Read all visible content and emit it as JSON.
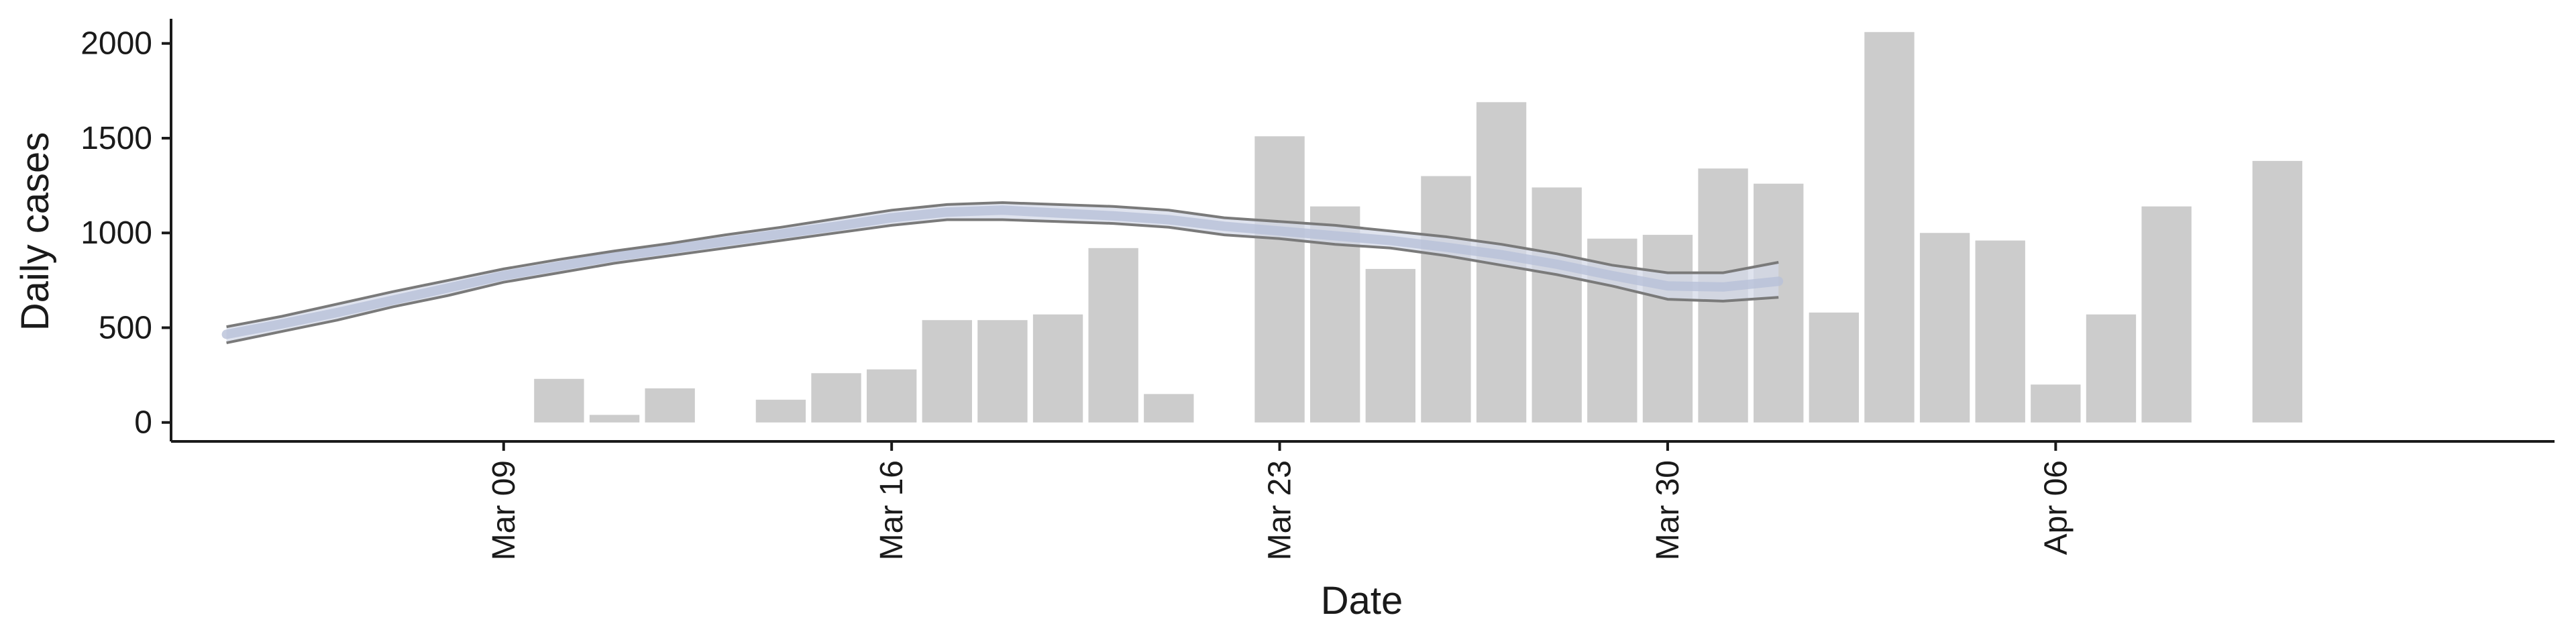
{
  "chart_data": {
    "type": "bar",
    "xlabel": "Date",
    "ylabel": "Daily cases",
    "ylim": [
      -100,
      2130
    ],
    "y_ticks": [
      0,
      500,
      1000,
      1500,
      2000
    ],
    "x_ticks": [
      {
        "date": "2020-03-09",
        "label": "Mar 09"
      },
      {
        "date": "2020-03-16",
        "label": "Mar 16"
      },
      {
        "date": "2020-03-23",
        "label": "Mar 23"
      },
      {
        "date": "2020-03-30",
        "label": "Mar 30"
      },
      {
        "date": "2020-04-06",
        "label": "Apr 06"
      }
    ],
    "xlim": [
      "2020-03-03",
      "2020-04-15"
    ],
    "grid": false,
    "legend": "none",
    "colors": {
      "bars": "#cccccc",
      "ribbon": "#d4d9e8",
      "median": "#b8c0d8",
      "bounds": "#7a7a7a",
      "axis": "#1a1a1a"
    },
    "bars": [
      {
        "date": "2020-03-10",
        "value": 230
      },
      {
        "date": "2020-03-11",
        "value": 40
      },
      {
        "date": "2020-03-12",
        "value": 180
      },
      {
        "date": "2020-03-14",
        "value": 120
      },
      {
        "date": "2020-03-15",
        "value": 260
      },
      {
        "date": "2020-03-16",
        "value": 280
      },
      {
        "date": "2020-03-17",
        "value": 540
      },
      {
        "date": "2020-03-18",
        "value": 540
      },
      {
        "date": "2020-03-19",
        "value": 570
      },
      {
        "date": "2020-03-20",
        "value": 920
      },
      {
        "date": "2020-03-21",
        "value": 150
      },
      {
        "date": "2020-03-23",
        "value": 1510
      },
      {
        "date": "2020-03-24",
        "value": 1140
      },
      {
        "date": "2020-03-25",
        "value": 810
      },
      {
        "date": "2020-03-26",
        "value": 1300
      },
      {
        "date": "2020-03-27",
        "value": 1690
      },
      {
        "date": "2020-03-28",
        "value": 1240
      },
      {
        "date": "2020-03-29",
        "value": 970
      },
      {
        "date": "2020-03-30",
        "value": 990
      },
      {
        "date": "2020-03-31",
        "value": 1340
      },
      {
        "date": "2020-04-01",
        "value": 1260
      },
      {
        "date": "2020-04-02",
        "value": 580
      },
      {
        "date": "2020-04-03",
        "value": 2060
      },
      {
        "date": "2020-04-04",
        "value": 1000
      },
      {
        "date": "2020-04-05",
        "value": 960
      },
      {
        "date": "2020-04-06",
        "value": 200
      },
      {
        "date": "2020-04-07",
        "value": 570
      },
      {
        "date": "2020-04-08",
        "value": 1140
      },
      {
        "date": "2020-04-10",
        "value": 1380
      }
    ],
    "estimate": [
      {
        "date": "2020-03-04",
        "lower": 420,
        "median": 465,
        "upper": 505
      },
      {
        "date": "2020-03-05",
        "lower": 480,
        "median": 520,
        "upper": 560
      },
      {
        "date": "2020-03-06",
        "lower": 540,
        "median": 580,
        "upper": 625
      },
      {
        "date": "2020-03-07",
        "lower": 610,
        "median": 645,
        "upper": 690
      },
      {
        "date": "2020-03-08",
        "lower": 670,
        "median": 710,
        "upper": 750
      },
      {
        "date": "2020-03-09",
        "lower": 740,
        "median": 775,
        "upper": 810
      },
      {
        "date": "2020-03-10",
        "lower": 790,
        "median": 825,
        "upper": 860
      },
      {
        "date": "2020-03-11",
        "lower": 840,
        "median": 875,
        "upper": 905
      },
      {
        "date": "2020-03-12",
        "lower": 880,
        "median": 915,
        "upper": 945
      },
      {
        "date": "2020-03-13",
        "lower": 920,
        "median": 955,
        "upper": 990
      },
      {
        "date": "2020-03-14",
        "lower": 960,
        "median": 995,
        "upper": 1030
      },
      {
        "date": "2020-03-15",
        "lower": 1000,
        "median": 1035,
        "upper": 1075
      },
      {
        "date": "2020-03-16",
        "lower": 1040,
        "median": 1080,
        "upper": 1120
      },
      {
        "date": "2020-03-17",
        "lower": 1070,
        "median": 1110,
        "upper": 1150
      },
      {
        "date": "2020-03-18",
        "lower": 1070,
        "median": 1120,
        "upper": 1160
      },
      {
        "date": "2020-03-19",
        "lower": 1060,
        "median": 1105,
        "upper": 1150
      },
      {
        "date": "2020-03-20",
        "lower": 1050,
        "median": 1090,
        "upper": 1140
      },
      {
        "date": "2020-03-21",
        "lower": 1030,
        "median": 1070,
        "upper": 1120
      },
      {
        "date": "2020-03-22",
        "lower": 990,
        "median": 1035,
        "upper": 1080
      },
      {
        "date": "2020-03-23",
        "lower": 970,
        "median": 1010,
        "upper": 1060
      },
      {
        "date": "2020-03-24",
        "lower": 940,
        "median": 985,
        "upper": 1040
      },
      {
        "date": "2020-03-25",
        "lower": 920,
        "median": 960,
        "upper": 1010
      },
      {
        "date": "2020-03-26",
        "lower": 880,
        "median": 925,
        "upper": 980
      },
      {
        "date": "2020-03-27",
        "lower": 830,
        "median": 885,
        "upper": 940
      },
      {
        "date": "2020-03-28",
        "lower": 780,
        "median": 835,
        "upper": 890
      },
      {
        "date": "2020-03-29",
        "lower": 720,
        "median": 775,
        "upper": 830
      },
      {
        "date": "2020-03-30",
        "lower": 650,
        "median": 720,
        "upper": 790
      },
      {
        "date": "2020-03-31",
        "lower": 640,
        "median": 715,
        "upper": 790
      },
      {
        "date": "2020-04-01",
        "lower": 660,
        "median": 745,
        "upper": 845
      }
    ]
  }
}
